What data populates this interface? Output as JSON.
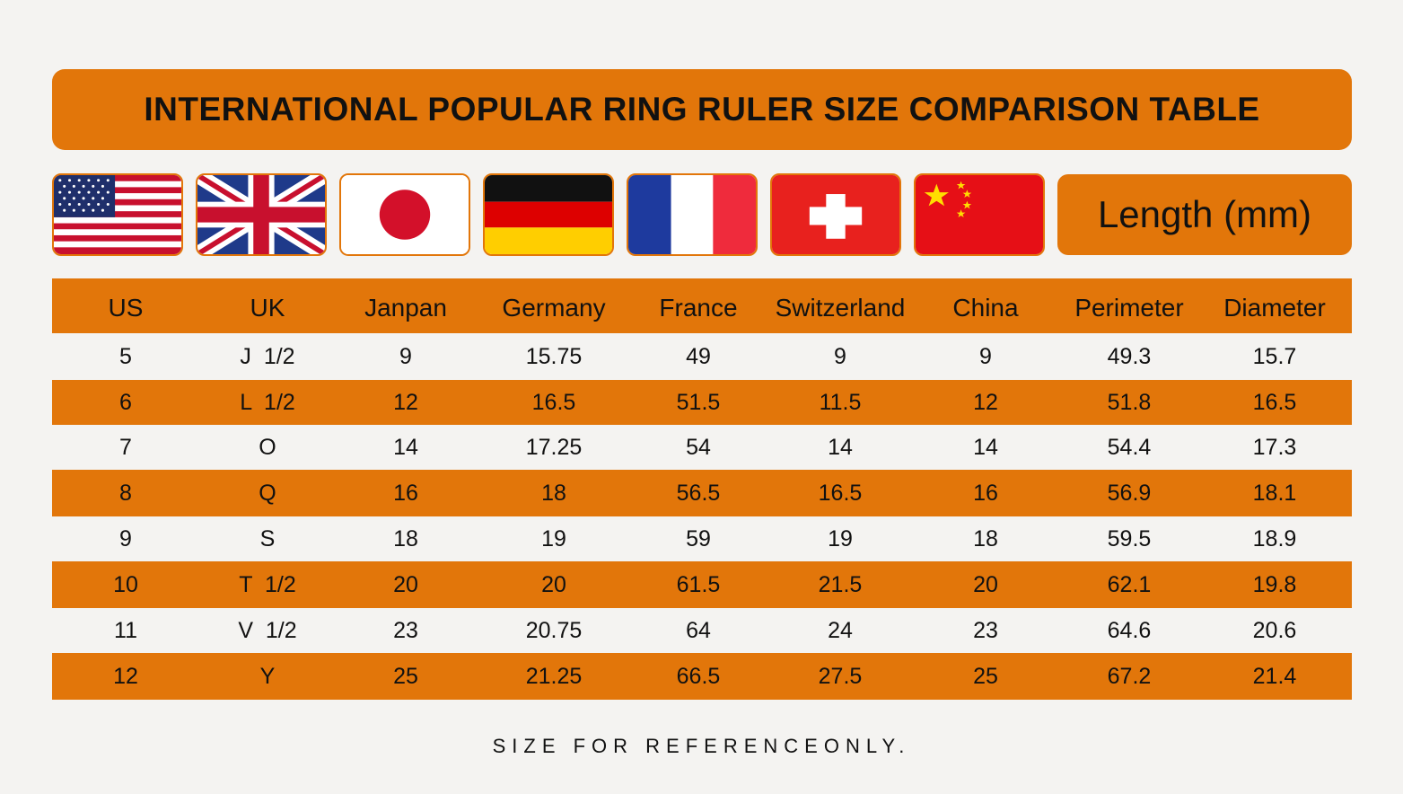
{
  "title": "INTERNATIONAL POPULAR RING RULER SIZE COMPARISON TABLE",
  "flags": [
    {
      "icon": "usa-flag-icon"
    },
    {
      "icon": "uk-flag-icon"
    },
    {
      "icon": "japan-flag-icon"
    },
    {
      "icon": "germany-flag-icon"
    },
    {
      "icon": "france-flag-icon"
    },
    {
      "icon": "switzerland-flag-icon"
    },
    {
      "icon": "china-flag-icon"
    }
  ],
  "length_label": "Length (mm)",
  "table": {
    "headers": [
      "US",
      "UK",
      "Janpan",
      "Germany",
      "France",
      "Switzerland",
      "China",
      "Perimeter",
      "Diameter"
    ],
    "rows": [
      [
        "5",
        "J  1/2",
        "9",
        "15.75",
        "49",
        "9",
        "9",
        "49.3",
        "15.7"
      ],
      [
        "6",
        "L  1/2",
        "12",
        "16.5",
        "51.5",
        "11.5",
        "12",
        "51.8",
        "16.5"
      ],
      [
        "7",
        "O",
        "14",
        "17.25",
        "54",
        "14",
        "14",
        "54.4",
        "17.3"
      ],
      [
        "8",
        "Q",
        "16",
        "18",
        "56.5",
        "16.5",
        "16",
        "56.9",
        "18.1"
      ],
      [
        "9",
        "S",
        "18",
        "19",
        "59",
        "19",
        "18",
        "59.5",
        "18.9"
      ],
      [
        "10",
        "T  1/2",
        "20",
        "20",
        "61.5",
        "21.5",
        "20",
        "62.1",
        "19.8"
      ],
      [
        "11",
        "V  1/2",
        "23",
        "20.75",
        "64",
        "24",
        "23",
        "64.6",
        "20.6"
      ],
      [
        "12",
        "Y",
        "25",
        "21.25",
        "66.5",
        "27.5",
        "25",
        "67.2",
        "21.4"
      ]
    ]
  },
  "footer": "SIZE FOR REFERENCEONLY.",
  "colors": {
    "accent": "#e2760a",
    "background": "#f4f3f1",
    "text": "#111111"
  }
}
